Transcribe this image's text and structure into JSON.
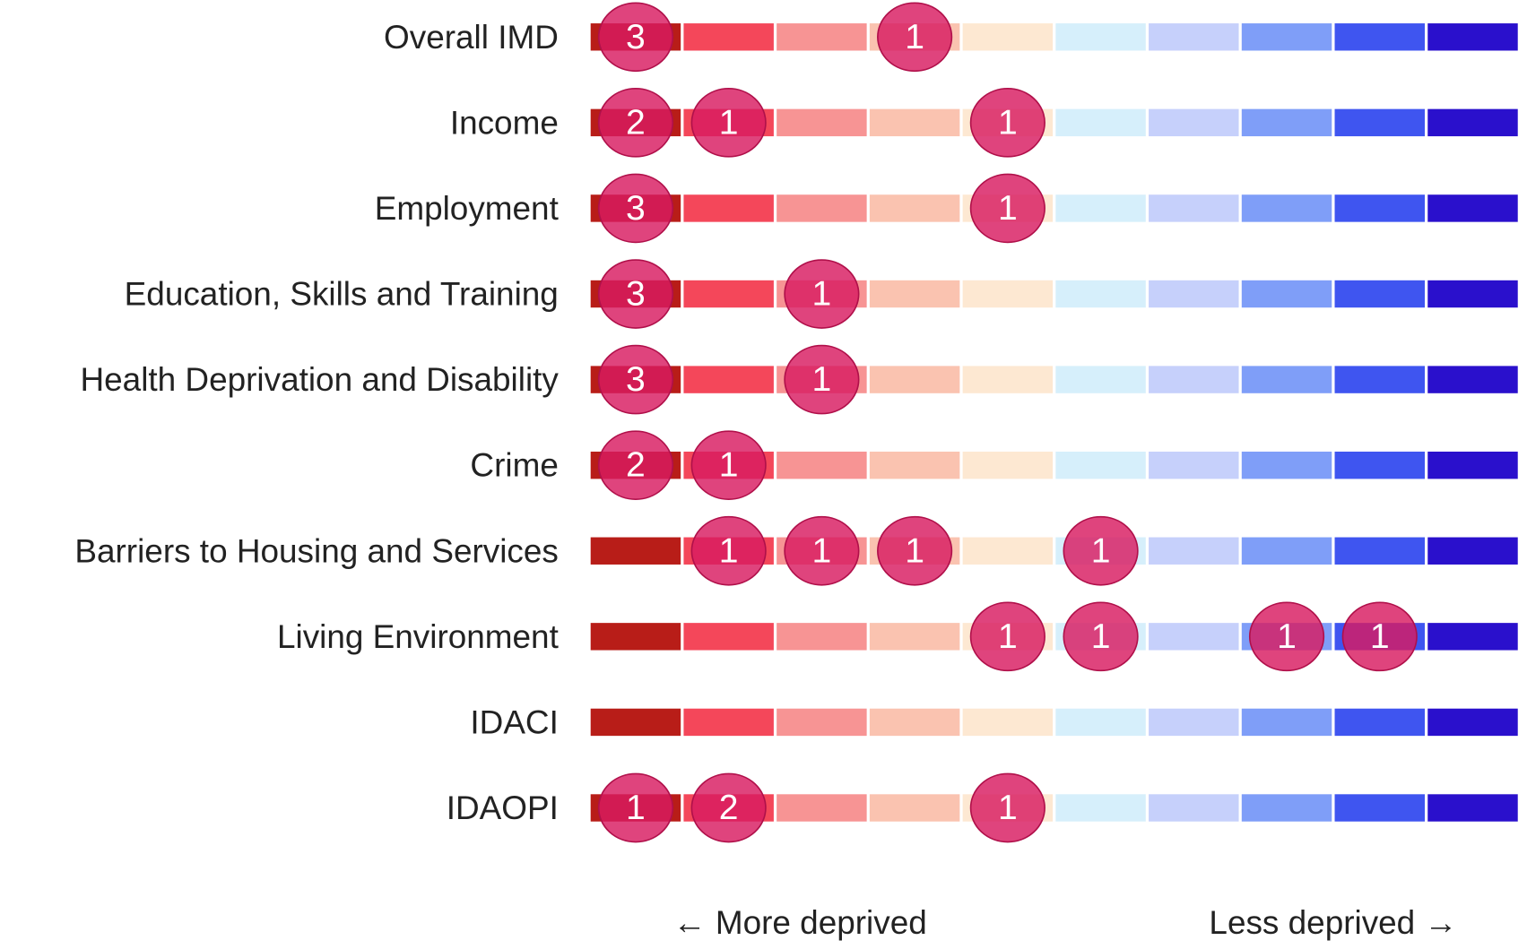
{
  "chart_data": {
    "type": "decile-dots",
    "colors": [
      "#b81d18",
      "#f4475a",
      "#f79494",
      "#fac3b0",
      "#fde8d2",
      "#d6effb",
      "#c6d0fb",
      "#7f9ef8",
      "#3f55f0",
      "#2a10cc"
    ],
    "bubble_color": "#d81b60",
    "rows": [
      {
        "name": "Overall IMD",
        "values": [
          3,
          null,
          null,
          1,
          null,
          null,
          null,
          null,
          null,
          null
        ]
      },
      {
        "name": "Income",
        "values": [
          2,
          1,
          null,
          null,
          1,
          null,
          null,
          null,
          null,
          null
        ]
      },
      {
        "name": "Employment",
        "values": [
          3,
          null,
          null,
          null,
          1,
          null,
          null,
          null,
          null,
          null
        ]
      },
      {
        "name": "Education, Skills and Training",
        "values": [
          3,
          null,
          1,
          null,
          null,
          null,
          null,
          null,
          null,
          null
        ]
      },
      {
        "name": "Health Deprivation and Disability",
        "values": [
          3,
          null,
          1,
          null,
          null,
          null,
          null,
          null,
          null,
          null
        ]
      },
      {
        "name": "Crime",
        "values": [
          2,
          1,
          null,
          null,
          null,
          null,
          null,
          null,
          null,
          null
        ]
      },
      {
        "name": "Barriers to Housing and Services",
        "values": [
          null,
          1,
          1,
          1,
          null,
          1,
          null,
          null,
          null,
          null
        ]
      },
      {
        "name": "Living Environment",
        "values": [
          null,
          null,
          null,
          null,
          1,
          1,
          null,
          1,
          1,
          null
        ]
      },
      {
        "name": "IDACI",
        "values": [
          null,
          null,
          null,
          null,
          null,
          null,
          null,
          null,
          null,
          null
        ]
      },
      {
        "name": "IDAOPI",
        "values": [
          1,
          2,
          null,
          null,
          1,
          null,
          null,
          null,
          null,
          null
        ]
      }
    ],
    "left_label": "← More deprived",
    "right_label": "Less deprived →"
  }
}
